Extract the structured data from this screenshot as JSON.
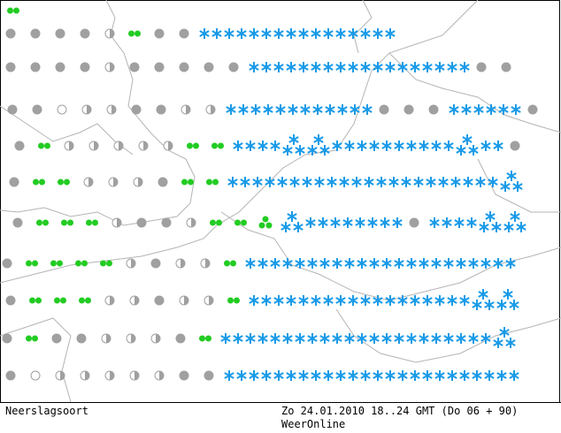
{
  "footer": {
    "left": "Neerslagsoort",
    "date": "Zo 24.01.2010 18..24 GMT (Do 06 + 90)",
    "source": "WeerOnline"
  }
}
